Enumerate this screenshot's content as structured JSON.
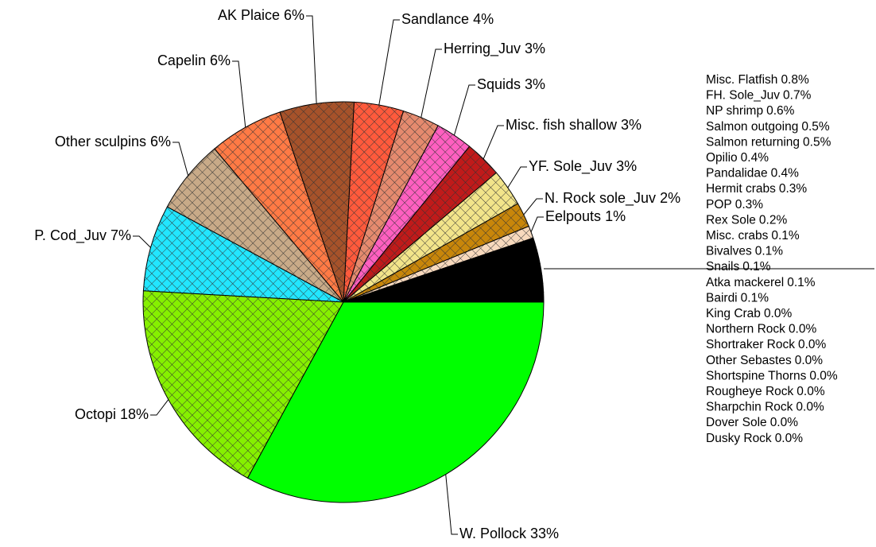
{
  "chart_data": {
    "type": "pie",
    "categories": [
      "Eelpouts",
      "N. Rock sole_Juv",
      "YF. Sole_Juv",
      "Misc. fish shallow",
      "Squids",
      "Herring_Juv",
      "Sandlance",
      "AK Plaice",
      "Capelin",
      "Other sculpins",
      "P. Cod_Juv",
      "Octopi",
      "W. Pollock"
    ],
    "values": [
      1,
      2,
      3,
      3,
      3,
      3,
      4,
      6,
      6,
      6,
      7,
      18,
      33
    ],
    "value_labels": [
      "1%",
      "2%",
      "3%",
      "3%",
      "3%",
      "3%",
      "4%",
      "6%",
      "6%",
      "6%",
      "7%",
      "18%",
      "33%"
    ],
    "colors": [
      "#f7d9bd",
      "#c8860a",
      "#f2e48a",
      "#c01a1a",
      "#ff5fc0",
      "#e58a6e",
      "#ff5a3c",
      "#a6522a",
      "#ff7a45",
      "#c8aa88",
      "#22e6ff",
      "#86f000",
      "#00ff00"
    ],
    "hatched": [
      true,
      true,
      true,
      true,
      true,
      true,
      true,
      true,
      true,
      true,
      true,
      true,
      false
    ],
    "other_categories": [
      "Misc. Flatfish",
      "FH. Sole_Juv",
      "NP shrimp",
      "Salmon outgoing",
      "Salmon returning",
      "Opilio",
      "Pandalidae",
      "Hermit crabs",
      "POP",
      "Rex Sole",
      "Misc. crabs",
      "Bivalves",
      "Snails",
      "Atka mackerel",
      "Bairdi",
      "King Crab",
      "Northern Rock",
      "Shortraker Rock",
      "Other Sebastes",
      "Shortspine Thorns",
      "Rougheye Rock",
      "Sharpchin Rock",
      "Dover Sole",
      "Dusky Rock"
    ],
    "other_values": [
      0.8,
      0.7,
      0.6,
      0.5,
      0.5,
      0.4,
      0.4,
      0.3,
      0.3,
      0.2,
      0.1,
      0.1,
      0.1,
      0.1,
      0.1,
      0,
      0,
      0,
      0,
      0,
      0,
      0,
      0,
      0
    ],
    "other_value_labels": [
      "0.8%",
      "0.7%",
      "0.6%",
      "0.5%",
      "0.5%",
      "0.4%",
      "0.4%",
      "0.3%",
      "0.3%",
      "0.2%",
      "0.1%",
      "0.1%",
      "0.1%",
      "0.1%",
      "0.1%",
      "0.0%",
      "0.0%",
      "0.0%",
      "0.0%",
      "0.0%",
      "0.0%",
      "0.0%",
      "0.0%",
      "0.0%"
    ],
    "other_color": "#000000"
  }
}
